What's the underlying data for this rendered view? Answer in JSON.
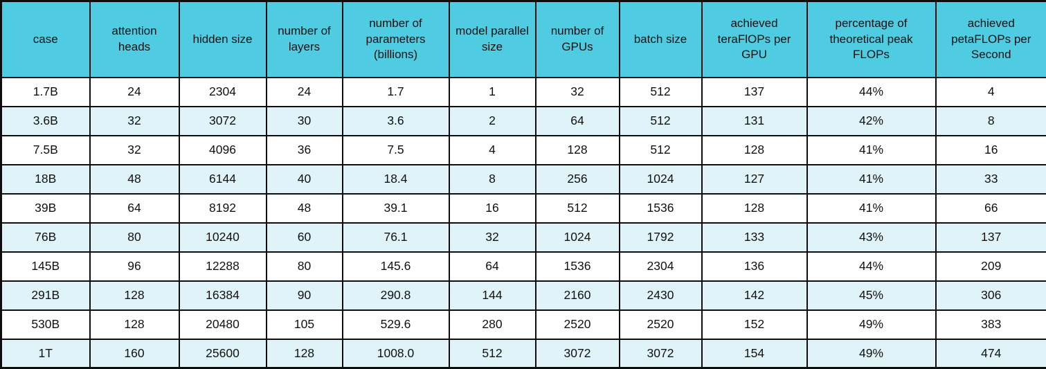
{
  "chart_data": {
    "type": "table",
    "columns": [
      "case",
      "attention heads",
      "hidden size",
      "number of layers",
      "number of parameters (billions)",
      "model parallel size",
      "number of GPUs",
      "batch size",
      "achieved teraFlOPs per GPU",
      "percentage of theoretical peak FLOPs",
      "achieved petaFLOPs per Second"
    ],
    "rows": [
      [
        "1.7B",
        "24",
        "2304",
        "24",
        "1.7",
        "1",
        "32",
        "512",
        "137",
        "44%",
        "4"
      ],
      [
        "3.6B",
        "32",
        "3072",
        "30",
        "3.6",
        "2",
        "64",
        "512",
        "131",
        "42%",
        "8"
      ],
      [
        "7.5B",
        "32",
        "4096",
        "36",
        "7.5",
        "4",
        "128",
        "512",
        "128",
        "41%",
        "16"
      ],
      [
        "18B",
        "48",
        "6144",
        "40",
        "18.4",
        "8",
        "256",
        "1024",
        "127",
        "41%",
        "33"
      ],
      [
        "39B",
        "64",
        "8192",
        "48",
        "39.1",
        "16",
        "512",
        "1536",
        "128",
        "41%",
        "66"
      ],
      [
        "76B",
        "80",
        "10240",
        "60",
        "76.1",
        "32",
        "1024",
        "1792",
        "133",
        "43%",
        "137"
      ],
      [
        "145B",
        "96",
        "12288",
        "80",
        "145.6",
        "64",
        "1536",
        "2304",
        "136",
        "44%",
        "209"
      ],
      [
        "291B",
        "128",
        "16384",
        "90",
        "290.8",
        "144",
        "2160",
        "2430",
        "142",
        "45%",
        "306"
      ],
      [
        "530B",
        "128",
        "20480",
        "105",
        "529.6",
        "280",
        "2520",
        "2520",
        "152",
        "49%",
        "383"
      ],
      [
        "1T",
        "160",
        "25600",
        "128",
        "1008.0",
        "512",
        "3072",
        "3072",
        "154",
        "49%",
        "474"
      ]
    ]
  },
  "table": {
    "colors": {
      "header_bg": "#4FCCE2",
      "stripe_bg": "#DFF3F8",
      "row_bg": "#FFFFFF",
      "border": "#0D0D0D",
      "text": "#111111"
    }
  }
}
